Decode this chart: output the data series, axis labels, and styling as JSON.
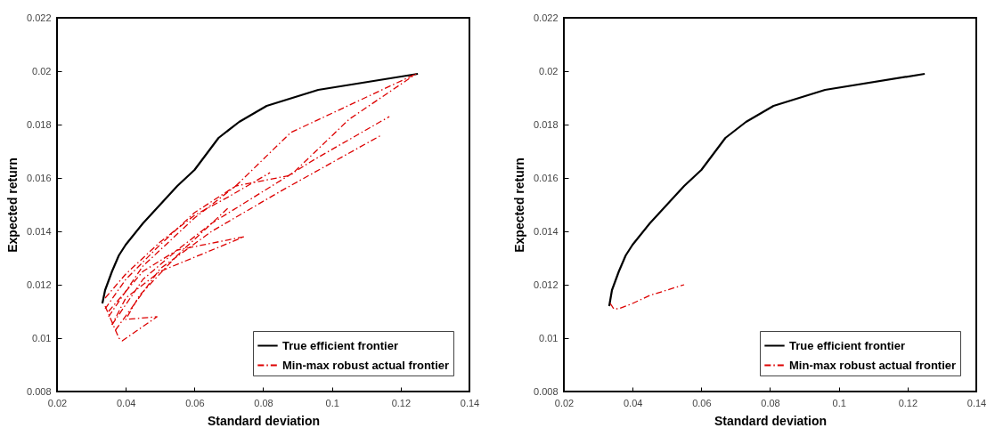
{
  "chart_data": [
    {
      "type": "line",
      "xlabel": "Standard deviation",
      "ylabel": "Expected return",
      "xlim": [
        0.02,
        0.14
      ],
      "ylim": [
        0.008,
        0.022
      ],
      "xticks": [
        0.02,
        0.04,
        0.06,
        0.08,
        0.1,
        0.12,
        0.14
      ],
      "yticks": [
        0.008,
        0.01,
        0.012,
        0.014,
        0.016,
        0.018,
        0.02,
        0.022
      ],
      "grid": false,
      "legend": "bottom right",
      "series": [
        {
          "name": "True efficient frontier",
          "color": "#000000",
          "line_style": "solid",
          "x": [
            0.0332,
            0.034,
            0.036,
            0.038,
            0.04,
            0.045,
            0.05,
            0.055,
            0.06,
            0.067,
            0.073,
            0.081,
            0.096,
            0.125
          ],
          "values": [
            0.0113,
            0.0118,
            0.0125,
            0.0131,
            0.0135,
            0.0143,
            0.015,
            0.0157,
            0.0163,
            0.0175,
            0.0181,
            0.0187,
            0.0193,
            0.0199
          ]
        },
        {
          "name": "Min-max robust actual frontier",
          "color": "#dd0000",
          "line_style": "dashdot",
          "x": [
            0.034,
            0.04,
            0.05,
            0.06,
            0.072,
            0.088,
            0.1245
          ],
          "values": [
            0.0111,
            0.0122,
            0.0135,
            0.0147,
            0.0157,
            0.0177,
            0.0199
          ]
        },
        {
          "color": "#dd0000",
          "line_style": "dashdot",
          "x": [
            0.035,
            0.045,
            0.06,
            0.072,
            0.088,
            0.105,
            0.1245
          ],
          "values": [
            0.0108,
            0.0127,
            0.0145,
            0.0157,
            0.0161,
            0.0182,
            0.0199
          ]
        },
        {
          "color": "#dd0000",
          "line_style": "dashdot",
          "x": [
            0.036,
            0.045,
            0.055,
            0.065,
            0.08,
            0.095,
            0.1167
          ],
          "values": [
            0.0105,
            0.0122,
            0.0133,
            0.0143,
            0.0155,
            0.0167,
            0.0183
          ]
        },
        {
          "color": "#dd0000",
          "line_style": "dashdot",
          "x": [
            0.037,
            0.05,
            0.065,
            0.085,
            0.1143
          ],
          "values": [
            0.0103,
            0.0126,
            0.014,
            0.0155,
            0.0176
          ]
        },
        {
          "color": "#dd0000",
          "line_style": "dashdot",
          "x": [
            0.035,
            0.045,
            0.055,
            0.0745,
            0.05,
            0.04,
            0.036
          ],
          "values": [
            0.011,
            0.0125,
            0.0133,
            0.0138,
            0.0125,
            0.0115,
            0.0105
          ]
        },
        {
          "color": "#dd0000",
          "line_style": "dashdot",
          "x": [
            0.034,
            0.038,
            0.039,
            0.0491,
            0.04,
            0.044,
            0.055,
            0.07
          ],
          "values": [
            0.0112,
            0.01,
            0.0099,
            0.0108,
            0.0107,
            0.0116,
            0.0131,
            0.0149
          ]
        },
        {
          "color": "#dd0000",
          "line_style": "dashdot",
          "x": [
            0.034,
            0.04,
            0.05,
            0.06,
            0.07,
            0.082
          ],
          "values": [
            0.0115,
            0.0124,
            0.0136,
            0.0146,
            0.0153,
            0.0162
          ]
        }
      ]
    },
    {
      "type": "line",
      "xlabel": "Standard deviation",
      "ylabel": "Expected return",
      "xlim": [
        0.02,
        0.14
      ],
      "ylim": [
        0.008,
        0.022
      ],
      "xticks": [
        0.02,
        0.04,
        0.06,
        0.08,
        0.1,
        0.12,
        0.14
      ],
      "yticks": [
        0.008,
        0.01,
        0.012,
        0.014,
        0.016,
        0.018,
        0.02,
        0.022
      ],
      "grid": false,
      "legend": "bottom right",
      "series": [
        {
          "name": "True efficient frontier",
          "color": "#000000",
          "line_style": "solid",
          "x": [
            0.0332,
            0.034,
            0.036,
            0.038,
            0.04,
            0.045,
            0.05,
            0.055,
            0.06,
            0.067,
            0.073,
            0.081,
            0.096,
            0.125
          ],
          "values": [
            0.0112,
            0.0118,
            0.0125,
            0.0131,
            0.0135,
            0.0143,
            0.015,
            0.0157,
            0.0163,
            0.0175,
            0.0181,
            0.0187,
            0.0193,
            0.0199
          ]
        },
        {
          "name": "Min-max robust actual frontier",
          "color": "#dd0000",
          "line_style": "dashdot",
          "x": [
            0.0335,
            0.0345,
            0.036,
            0.04,
            0.045,
            0.05,
            0.055
          ],
          "values": [
            0.0113,
            0.0111,
            0.0111,
            0.0113,
            0.0116,
            0.0118,
            0.012
          ]
        }
      ]
    }
  ]
}
